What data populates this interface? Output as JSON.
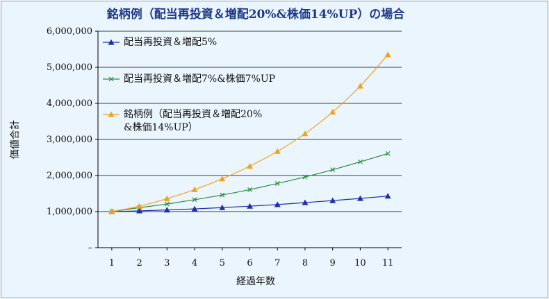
{
  "chart_data": {
    "type": "line",
    "title": "銘柄例（配当再投資＆増配20%&株価14%UP）の場合",
    "xlabel": "経過年数",
    "ylabel": "価値合計",
    "x": [
      1,
      2,
      3,
      4,
      5,
      6,
      7,
      8,
      9,
      10,
      11
    ],
    "y_tick_labels": [
      "–",
      "1,000,000",
      "2,000,000",
      "3,000,000",
      "4,000,000",
      "5,000,000",
      "6,000,000"
    ],
    "y_tick_values": [
      0,
      1000000,
      2000000,
      3000000,
      4000000,
      5000000,
      6000000
    ],
    "ylim": [
      0,
      6000000
    ],
    "grid": "horizontal",
    "legend_position": "top-left-inside",
    "series": [
      {
        "name": "配当再投資＆増配5%",
        "color": "#1f2fa8",
        "marker": "triangle",
        "values": [
          1000000,
          1020000,
          1045000,
          1075000,
          1110000,
          1150000,
          1195000,
          1250000,
          1305000,
          1365000,
          1430000
        ]
      },
      {
        "name": "配当再投資＆増配7%&株価7%UP",
        "color": "#2e8b3a",
        "marker": "x",
        "values": [
          1000000,
          1110000,
          1210000,
          1330000,
          1460000,
          1610000,
          1780000,
          1960000,
          2160000,
          2380000,
          2610000
        ]
      },
      {
        "name": "銘柄例（配当再投資＆増配20%&株価14%UP）",
        "legend_lines": [
          "銘柄例（配当再投資＆増配20%",
          "&株価14%UP）"
        ],
        "color": "#f2a11f",
        "marker": "triangle",
        "values": [
          1000000,
          1150000,
          1360000,
          1610000,
          1910000,
          2260000,
          2670000,
          3160000,
          3760000,
          4480000,
          5350000
        ]
      }
    ]
  }
}
